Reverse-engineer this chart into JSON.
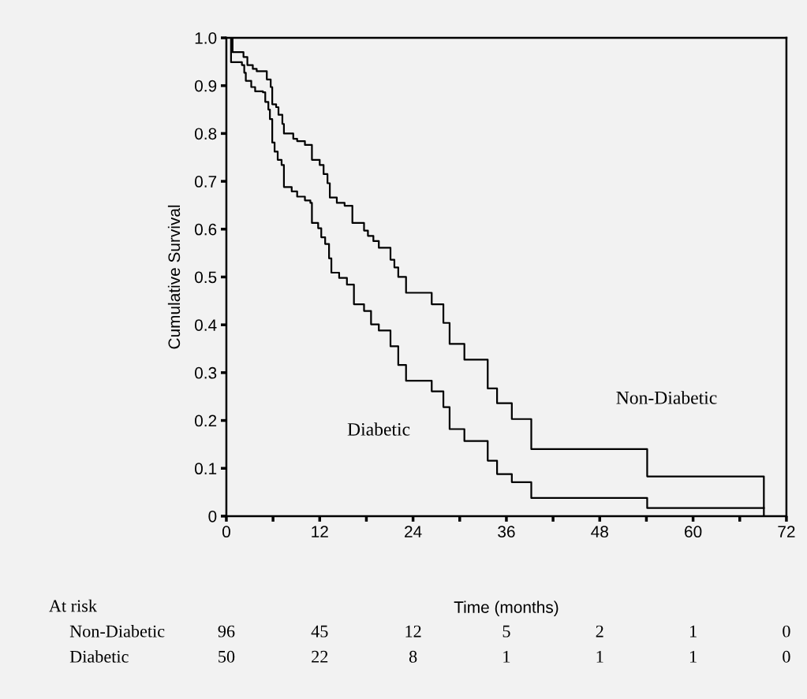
{
  "chart_data": {
    "type": "step",
    "xlabel": "Time (months)",
    "ylabel": "Cumulative Survival",
    "xlim": [
      0,
      72
    ],
    "ylim": [
      0,
      1.0
    ],
    "xticks": [
      0,
      {
        "value": 6,
        "label": null
      },
      12,
      {
        "value": 18,
        "label": null
      },
      24,
      {
        "value": 30,
        "label": null
      },
      36,
      {
        "value": 42,
        "label": null
      },
      48,
      {
        "value": 54,
        "label": null
      },
      60,
      {
        "value": 66,
        "label": null
      },
      72
    ],
    "yticks": [
      0,
      0.1,
      0.2,
      0.3,
      0.4,
      0.5,
      0.6,
      0.7,
      0.8,
      0.9,
      {
        "value": 1.0,
        "label": "1.0"
      }
    ],
    "grid": false,
    "series": [
      {
        "name": "Non-Diabetic",
        "color": "#000000",
        "x": [
          0,
          0.8,
          2.2,
          2.7,
          3.4,
          3.9,
          5.2,
          5.7,
          5.9,
          6.4,
          6.7,
          7.2,
          7.4,
          8.6,
          9.1,
          10.1,
          11.0,
          12.0,
          12.5,
          13.0,
          13.3,
          14.2,
          15.2,
          16.2,
          17.7,
          18.2,
          18.9,
          19.6,
          21.1,
          21.6,
          22.1,
          23.1,
          26.4,
          27.9,
          28.7,
          30.6,
          33.6,
          34.8,
          36.7,
          39.2,
          54.1,
          69.1
        ],
        "values": [
          1.0,
          0.97,
          0.96,
          0.943,
          0.935,
          0.93,
          0.913,
          0.897,
          0.861,
          0.855,
          0.839,
          0.82,
          0.8,
          0.789,
          0.784,
          0.776,
          0.745,
          0.734,
          0.715,
          0.696,
          0.666,
          0.655,
          0.649,
          0.613,
          0.597,
          0.586,
          0.575,
          0.561,
          0.536,
          0.52,
          0.5,
          0.467,
          0.443,
          0.404,
          0.36,
          0.327,
          0.267,
          0.236,
          0.203,
          0.14,
          0.083,
          0
        ]
      },
      {
        "name": "Diabetic",
        "color": "#000000",
        "x": [
          0,
          0.6,
          2.0,
          2.3,
          2.5,
          3.2,
          3.7,
          4.7,
          5.0,
          5.4,
          5.6,
          5.9,
          6.2,
          6.6,
          7.1,
          7.4,
          8.4,
          9.1,
          10.1,
          10.8,
          11.0,
          11.8,
          12.2,
          12.7,
          13.2,
          13.5,
          14.5,
          15.5,
          16.4,
          17.7,
          18.6,
          19.6,
          21.1,
          22.1,
          23.1,
          26.4,
          27.9,
          28.7,
          30.6,
          33.6,
          34.8,
          36.7,
          39.2,
          54.1,
          69.1
        ],
        "values": [
          1.0,
          0.949,
          0.943,
          0.927,
          0.91,
          0.897,
          0.888,
          0.886,
          0.866,
          0.85,
          0.83,
          0.781,
          0.762,
          0.745,
          0.734,
          0.688,
          0.679,
          0.668,
          0.66,
          0.655,
          0.613,
          0.602,
          0.583,
          0.569,
          0.539,
          0.509,
          0.498,
          0.484,
          0.443,
          0.429,
          0.401,
          0.388,
          0.355,
          0.316,
          0.283,
          0.261,
          0.228,
          0.182,
          0.157,
          0.116,
          0.088,
          0.071,
          0.038,
          0.017,
          0.017
        ]
      }
    ],
    "annotations": [
      "At risk",
      "Non-Diabetic",
      "96",
      "45",
      "12",
      "5",
      "2",
      "1",
      "0",
      "Diabetic",
      "50",
      "22",
      "8",
      "1",
      "1",
      "1",
      "0"
    ]
  }
}
